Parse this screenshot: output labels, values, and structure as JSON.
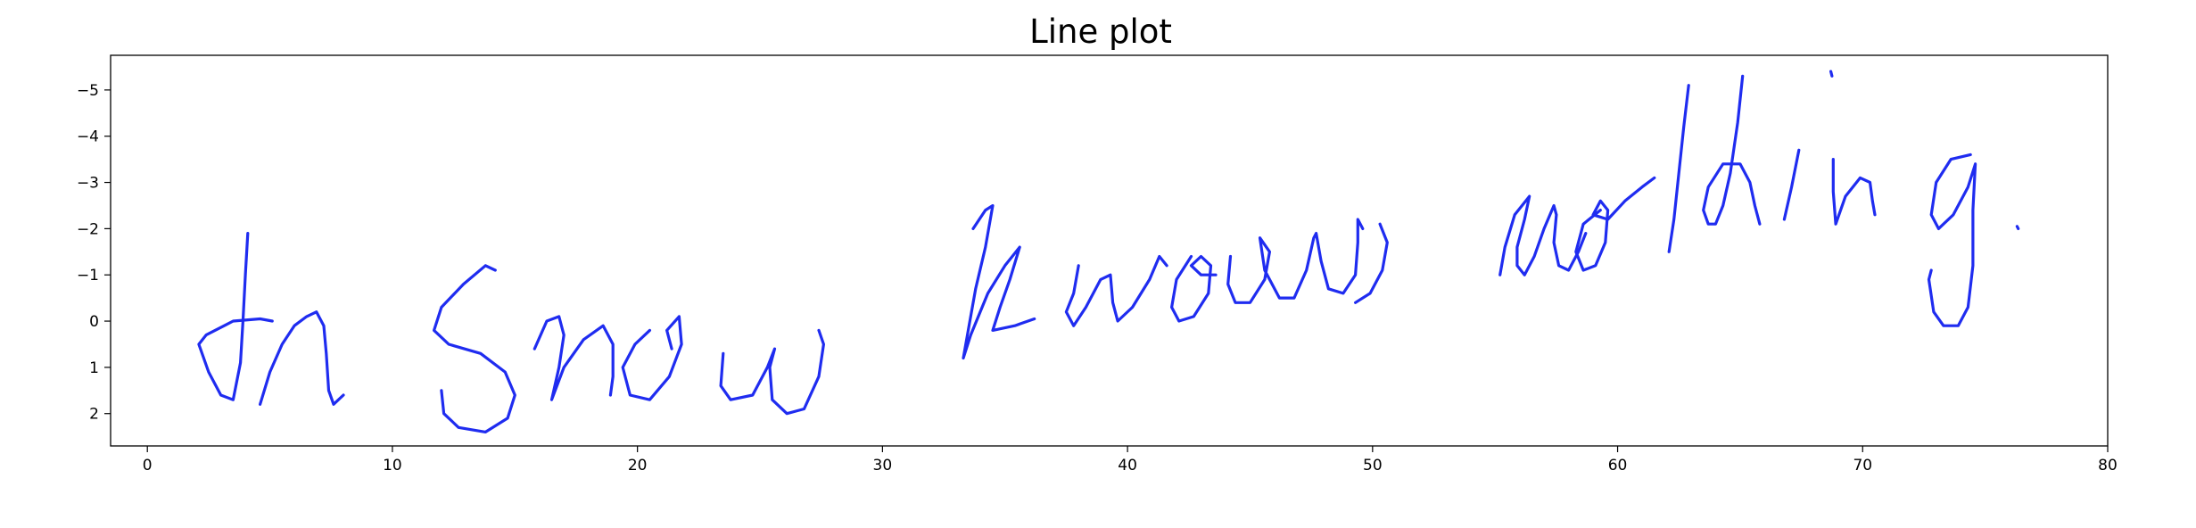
{
  "chart_data": {
    "type": "line",
    "title": "Line plot",
    "xlabel": "",
    "ylabel": "",
    "xlim": [
      -1.5,
      80
    ],
    "ylim": [
      -5.75,
      2.7
    ],
    "y_inverted": true,
    "grid": false,
    "x_ticks": [
      0,
      10,
      20,
      30,
      40,
      50,
      60,
      70,
      80
    ],
    "y_ticks": [
      -5,
      -4,
      -3,
      -2,
      -1,
      0,
      1,
      2
    ],
    "line_color": "#1f2cf0",
    "strokes": [
      {
        "name": "",
        "points": [
          [
            4.1,
            -1.9
          ],
          [
            4.0,
            -1.0
          ],
          [
            3.9,
            0.0
          ],
          [
            3.8,
            0.9
          ],
          [
            3.5,
            1.7
          ],
          [
            3.0,
            1.6
          ],
          [
            2.5,
            1.1
          ],
          [
            2.1,
            0.5
          ],
          [
            2.4,
            0.3
          ],
          [
            3.5,
            0.0
          ],
          [
            4.6,
            -0.05
          ],
          [
            5.1,
            0.0
          ]
        ]
      },
      {
        "name": "",
        "points": [
          [
            4.6,
            1.8
          ],
          [
            5.0,
            1.1
          ],
          [
            5.5,
            0.5
          ],
          [
            6.0,
            0.1
          ],
          [
            6.5,
            -0.1
          ],
          [
            6.9,
            -0.2
          ],
          [
            7.2,
            0.1
          ],
          [
            7.3,
            0.7
          ],
          [
            7.4,
            1.5
          ],
          [
            7.6,
            1.8
          ],
          [
            8.0,
            1.6
          ]
        ]
      },
      {
        "name": "",
        "points": [
          [
            14.2,
            -1.1
          ],
          [
            13.8,
            -1.2
          ],
          [
            12.9,
            -0.8
          ],
          [
            12.0,
            -0.3
          ],
          [
            11.7,
            0.2
          ],
          [
            12.3,
            0.5
          ],
          [
            13.6,
            0.7
          ],
          [
            14.6,
            1.1
          ],
          [
            15.0,
            1.6
          ],
          [
            14.7,
            2.1
          ],
          [
            13.8,
            2.4
          ],
          [
            12.7,
            2.3
          ],
          [
            12.1,
            2.0
          ],
          [
            12.0,
            1.5
          ]
        ]
      },
      {
        "name": "",
        "points": [
          [
            15.8,
            0.6
          ],
          [
            16.3,
            0.0
          ],
          [
            16.8,
            -0.1
          ],
          [
            17.0,
            0.3
          ],
          [
            16.8,
            1.0
          ],
          [
            16.5,
            1.7
          ],
          [
            17.0,
            1.0
          ],
          [
            17.8,
            0.4
          ],
          [
            18.6,
            0.1
          ],
          [
            19.0,
            0.5
          ],
          [
            19.0,
            1.2
          ],
          [
            18.9,
            1.6
          ]
        ]
      },
      {
        "name": "",
        "points": [
          [
            20.5,
            0.2
          ],
          [
            19.9,
            0.5
          ],
          [
            19.4,
            1.0
          ],
          [
            19.7,
            1.6
          ],
          [
            20.5,
            1.7
          ],
          [
            21.3,
            1.2
          ],
          [
            21.8,
            0.5
          ],
          [
            21.7,
            -0.1
          ],
          [
            21.2,
            0.2
          ],
          [
            21.4,
            0.6
          ]
        ]
      },
      {
        "name": "",
        "points": [
          [
            23.5,
            0.7
          ],
          [
            23.4,
            1.4
          ],
          [
            23.8,
            1.7
          ],
          [
            24.7,
            1.6
          ],
          [
            25.3,
            1.0
          ],
          [
            25.6,
            0.6
          ],
          [
            25.4,
            1.0
          ],
          [
            25.5,
            1.7
          ],
          [
            26.1,
            2.0
          ],
          [
            26.8,
            1.9
          ],
          [
            27.4,
            1.2
          ],
          [
            27.6,
            0.5
          ],
          [
            27.4,
            0.2
          ]
        ]
      },
      {
        "name": "",
        "points": [
          [
            33.7,
            -2.0
          ],
          [
            34.2,
            -2.4
          ],
          [
            34.5,
            -2.5
          ],
          [
            34.2,
            -1.6
          ],
          [
            33.8,
            -0.7
          ],
          [
            33.5,
            0.2
          ],
          [
            33.3,
            0.8
          ],
          [
            33.6,
            0.3
          ],
          [
            34.3,
            -0.6
          ],
          [
            35.0,
            -1.2
          ],
          [
            35.6,
            -1.6
          ],
          [
            35.2,
            -0.9
          ],
          [
            34.8,
            -0.3
          ],
          [
            34.5,
            0.2
          ],
          [
            35.4,
            0.1
          ],
          [
            36.2,
            -0.05
          ]
        ]
      },
      {
        "name": "",
        "points": [
          [
            38.0,
            -1.2
          ],
          [
            37.8,
            -0.6
          ],
          [
            37.5,
            -0.2
          ],
          [
            37.8,
            0.1
          ],
          [
            38.3,
            -0.3
          ],
          [
            38.9,
            -0.9
          ],
          [
            39.3,
            -1.0
          ],
          [
            39.4,
            -0.4
          ],
          [
            39.6,
            0.0
          ],
          [
            40.2,
            -0.3
          ],
          [
            40.9,
            -0.9
          ],
          [
            41.3,
            -1.4
          ],
          [
            41.6,
            -1.2
          ]
        ]
      },
      {
        "name": "",
        "points": [
          [
            42.6,
            -1.4
          ],
          [
            42.0,
            -0.9
          ],
          [
            41.8,
            -0.3
          ],
          [
            42.1,
            0.0
          ],
          [
            42.7,
            -0.1
          ],
          [
            43.3,
            -0.6
          ],
          [
            43.4,
            -1.2
          ],
          [
            43.0,
            -1.4
          ],
          [
            42.6,
            -1.2
          ],
          [
            43.0,
            -1.0
          ],
          [
            43.6,
            -1.0
          ]
        ]
      },
      {
        "name": "",
        "points": [
          [
            44.2,
            -1.4
          ],
          [
            44.1,
            -0.8
          ],
          [
            44.4,
            -0.4
          ],
          [
            45.0,
            -0.4
          ],
          [
            45.6,
            -0.9
          ],
          [
            45.8,
            -1.5
          ],
          [
            45.4,
            -1.8
          ],
          [
            45.6,
            -1.1
          ],
          [
            46.2,
            -0.5
          ],
          [
            46.8,
            -0.5
          ],
          [
            47.3,
            -1.1
          ],
          [
            47.6,
            -1.8
          ],
          [
            47.7,
            -1.9
          ],
          [
            47.9,
            -1.3
          ],
          [
            48.2,
            -0.7
          ],
          [
            48.8,
            -0.6
          ],
          [
            49.3,
            -1.0
          ],
          [
            49.4,
            -1.7
          ],
          [
            49.4,
            -2.2
          ],
          [
            49.6,
            -2.0
          ]
        ]
      },
      {
        "name": "",
        "points": [
          [
            49.3,
            -0.4
          ],
          [
            49.9,
            -0.6
          ],
          [
            50.4,
            -1.1
          ],
          [
            50.6,
            -1.7
          ],
          [
            50.3,
            -2.1
          ]
        ]
      },
      {
        "name": "",
        "points": [
          [
            55.2,
            -1.0
          ],
          [
            55.4,
            -1.6
          ],
          [
            55.8,
            -2.3
          ],
          [
            56.4,
            -2.7
          ],
          [
            56.2,
            -2.2
          ],
          [
            55.9,
            -1.6
          ],
          [
            55.9,
            -1.2
          ],
          [
            56.2,
            -1.0
          ],
          [
            56.6,
            -1.4
          ],
          [
            57.0,
            -2.0
          ],
          [
            57.4,
            -2.5
          ],
          [
            57.5,
            -2.3
          ],
          [
            57.4,
            -1.7
          ],
          [
            57.6,
            -1.2
          ],
          [
            58.0,
            -1.1
          ],
          [
            58.4,
            -1.5
          ],
          [
            58.7,
            -1.9
          ]
        ]
      },
      {
        "name": "",
        "points": [
          [
            59.3,
            -2.4
          ],
          [
            58.6,
            -2.1
          ],
          [
            58.3,
            -1.5
          ],
          [
            58.6,
            -1.1
          ],
          [
            59.1,
            -1.2
          ],
          [
            59.5,
            -1.7
          ],
          [
            59.6,
            -2.4
          ],
          [
            59.3,
            -2.6
          ],
          [
            59.0,
            -2.3
          ],
          [
            59.6,
            -2.2
          ],
          [
            60.3,
            -2.6
          ],
          [
            61.0,
            -2.9
          ],
          [
            61.5,
            -3.1
          ]
        ]
      },
      {
        "name": "",
        "points": [
          [
            62.9,
            -5.1
          ],
          [
            62.7,
            -4.2
          ],
          [
            62.5,
            -3.2
          ],
          [
            62.3,
            -2.2
          ],
          [
            62.1,
            -1.5
          ]
        ]
      },
      {
        "name": "",
        "points": [
          [
            65.1,
            -5.3
          ],
          [
            64.9,
            -4.3
          ],
          [
            64.6,
            -3.2
          ],
          [
            64.3,
            -2.5
          ],
          [
            64.0,
            -2.1
          ],
          [
            63.7,
            -2.1
          ],
          [
            63.5,
            -2.4
          ],
          [
            63.7,
            -2.9
          ],
          [
            64.3,
            -3.4
          ],
          [
            65.0,
            -3.4
          ],
          [
            65.4,
            -3.0
          ],
          [
            65.6,
            -2.5
          ],
          [
            65.8,
            -2.1
          ]
        ]
      },
      {
        "name": "",
        "points": [
          [
            67.4,
            -3.7
          ],
          [
            67.1,
            -2.9
          ],
          [
            66.8,
            -2.2
          ]
        ]
      },
      {
        "name": "",
        "points": [
          [
            68.7,
            -5.4
          ],
          [
            68.75,
            -5.3
          ]
        ]
      },
      {
        "name": "",
        "points": [
          [
            68.8,
            -3.5
          ],
          [
            68.8,
            -2.8
          ],
          [
            68.9,
            -2.1
          ],
          [
            69.3,
            -2.7
          ],
          [
            69.9,
            -3.1
          ],
          [
            70.3,
            -3.0
          ],
          [
            70.4,
            -2.6
          ],
          [
            70.5,
            -2.3
          ]
        ]
      },
      {
        "name": "",
        "points": [
          [
            74.4,
            -3.6
          ],
          [
            73.6,
            -3.5
          ],
          [
            73.0,
            -3.0
          ],
          [
            72.8,
            -2.3
          ],
          [
            73.1,
            -2.0
          ],
          [
            73.7,
            -2.3
          ],
          [
            74.3,
            -2.9
          ],
          [
            74.6,
            -3.4
          ],
          [
            74.5,
            -2.4
          ],
          [
            74.5,
            -1.2
          ],
          [
            74.3,
            -0.3
          ],
          [
            73.9,
            0.1
          ],
          [
            73.3,
            0.1
          ],
          [
            72.9,
            -0.2
          ],
          [
            72.7,
            -0.9
          ],
          [
            72.8,
            -1.1
          ]
        ]
      },
      {
        "name": "",
        "points": [
          [
            76.3,
            -2.05
          ],
          [
            76.35,
            -2.0
          ]
        ]
      }
    ]
  }
}
